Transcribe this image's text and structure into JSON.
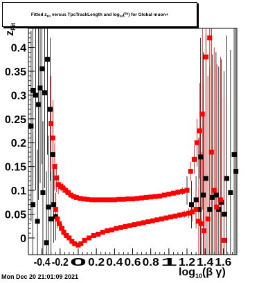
{
  "chart_data": {
    "type": "scatter",
    "title": {
      "pre": "Fitted z",
      "sub": "Fit",
      "mid": " versus TpcTrackLength and log",
      "sub2": "10",
      "post": "(",
      "sym": "βγ",
      "end": ") for Global muon+"
    },
    "ylabel": {
      "main": "z",
      "sub": "Fit"
    },
    "xlabel": {
      "main": "log",
      "sub": "10",
      "post": "(β γ)"
    },
    "xlim": [
      -0.55,
      1.75
    ],
    "ylim": [
      -0.035,
      0.44
    ],
    "x_ticks": [
      {
        "v": -0.4,
        "label": "-0.4"
      },
      {
        "v": -0.2,
        "label": "-0.2"
      },
      {
        "v": 0,
        "label": "0"
      },
      {
        "v": 0.2,
        "label": "0.2"
      },
      {
        "v": 0.4,
        "label": "0.4"
      },
      {
        "v": 0.6,
        "label": "0.6"
      },
      {
        "v": 0.8,
        "label": "0.8"
      },
      {
        "v": 1.0,
        "label": "1"
      },
      {
        "v": 1.2,
        "label": "1.2"
      },
      {
        "v": 1.4,
        "label": "1.4"
      },
      {
        "v": 1.6,
        "label": "1.6"
      }
    ],
    "y_ticks": [
      {
        "v": 0,
        "label": "0"
      },
      {
        "v": 0.05,
        "label": "0.05"
      },
      {
        "v": 0.1,
        "label": "0.1"
      },
      {
        "v": 0.15,
        "label": "0.15"
      },
      {
        "v": 0.2,
        "label": "0.2"
      },
      {
        "v": 0.25,
        "label": "0.25"
      },
      {
        "v": 0.3,
        "label": "0.3"
      },
      {
        "v": 0.35,
        "label": "0.35"
      },
      {
        "v": 0.4,
        "label": "0.4"
      }
    ],
    "series": [
      {
        "color": "#000000",
        "points": [
          {
            "x": -0.52,
            "y": 0.235,
            "e": 0.2
          },
          {
            "x": -0.5,
            "y": 0.31,
            "e": 0.2
          },
          {
            "x": -0.5,
            "y": 0.07,
            "e": 0.15
          },
          {
            "x": -0.47,
            "y": 0.3,
            "e": 0.2
          },
          {
            "x": -0.45,
            "y": 0.035,
            "e": 0.15
          },
          {
            "x": -0.44,
            "y": 0.28,
            "e": 0.2
          },
          {
            "x": -0.42,
            "y": 0.315,
            "e": 0.2
          },
          {
            "x": -0.4,
            "y": 0.355,
            "e": 0.2
          },
          {
            "x": -0.39,
            "y": 0.095,
            "e": 0.15
          },
          {
            "x": -0.37,
            "y": 0.305,
            "e": 0.2
          },
          {
            "x": -0.35,
            "y": -0.01,
            "e": 0.15
          },
          {
            "x": -0.34,
            "y": 0.375,
            "e": 0.2
          },
          {
            "x": -0.33,
            "y": 0.065,
            "e": 0.15
          },
          {
            "x": -0.31,
            "y": 0.27,
            "e": 0.15
          },
          {
            "x": -0.3,
            "y": 0.04,
            "e": 0.1
          },
          {
            "x": -0.28,
            "y": 0.175,
            "e": 0.1
          },
          {
            "x": -0.27,
            "y": 0.07,
            "e": 0.08
          },
          {
            "x": -0.25,
            "y": 0.045,
            "e": 0.05
          },
          {
            "x": 1.2,
            "y": 0.1,
            "e": 0.03
          },
          {
            "x": 1.25,
            "y": 0.07,
            "e": 0.05
          },
          {
            "x": 1.3,
            "y": 0.08,
            "e": 0.05
          },
          {
            "x": 1.33,
            "y": 0.06,
            "e": 0.15
          },
          {
            "x": 1.35,
            "y": 0.17,
            "e": 0.25
          },
          {
            "x": 1.38,
            "y": 0.09,
            "e": 0.3
          },
          {
            "x": 1.41,
            "y": 0.125,
            "e": 0.3
          },
          {
            "x": 1.45,
            "y": 0.06,
            "e": 0.3
          },
          {
            "x": 1.48,
            "y": 0.085,
            "e": 0.3
          },
          {
            "x": 1.52,
            "y": 0.09,
            "e": 0.3
          },
          {
            "x": 1.55,
            "y": 0.06,
            "e": 0.3
          },
          {
            "x": 1.58,
            "y": 0.075,
            "e": 0.3
          },
          {
            "x": 1.61,
            "y": 0.05,
            "e": 0.3
          },
          {
            "x": 1.64,
            "y": 0.125,
            "e": 0.3
          },
          {
            "x": 1.68,
            "y": 0.095,
            "e": 0.3
          },
          {
            "x": 1.72,
            "y": 0.175,
            "e": 0.3
          },
          {
            "x": 1.74,
            "y": 0.14,
            "e": 0.3
          }
        ]
      },
      {
        "color": "#ff0000",
        "points": [
          {
            "x": -0.3,
            "y": 0.24,
            "e": 0.1
          },
          {
            "x": -0.28,
            "y": 0.21,
            "e": 0.08
          },
          {
            "x": -0.26,
            "y": 0.15,
            "e": 0.05
          },
          {
            "x": -0.25,
            "y": 0.06,
            "e": 0.03
          },
          {
            "x": -0.24,
            "y": 0.126,
            "e": 0.03
          },
          {
            "x": -0.23,
            "y": 0.04,
            "e": 0.02
          },
          {
            "x": -0.22,
            "y": 0.112,
            "e": 0.02
          },
          {
            "x": -0.21,
            "y": 0.03,
            "e": 0.015
          },
          {
            "x": -0.19,
            "y": 0.108,
            "e": 0.01
          },
          {
            "x": -0.18,
            "y": 0.02,
            "e": 0.01
          },
          {
            "x": -0.17,
            "y": 0.105,
            "e": 0.01
          },
          {
            "x": -0.16,
            "y": 0.012,
            "e": 0.008
          },
          {
            "x": -0.14,
            "y": 0.1,
            "e": 0.008
          },
          {
            "x": -0.13,
            "y": 0.005,
            "e": 0.006
          },
          {
            "x": -0.11,
            "y": 0.095,
            "e": 0.006
          },
          {
            "x": -0.1,
            "y": 0.0,
            "e": 0.005
          },
          {
            "x": -0.08,
            "y": 0.09,
            "e": 0.005
          },
          {
            "x": -0.07,
            "y": -0.007,
            "e": 0.005
          },
          {
            "x": -0.05,
            "y": 0.087,
            "e": 0.004
          },
          {
            "x": -0.04,
            "y": -0.012,
            "e": 0.004
          },
          {
            "x": -0.02,
            "y": 0.085,
            "e": 0.004
          },
          {
            "x": 0.0,
            "y": -0.015,
            "e": 0.004
          },
          {
            "x": 0.02,
            "y": 0.083,
            "e": 0.003
          },
          {
            "x": 0.03,
            "y": -0.012,
            "e": 0.003
          },
          {
            "x": 0.06,
            "y": 0.082,
            "e": 0.003
          },
          {
            "x": 0.07,
            "y": -0.005,
            "e": 0.003
          },
          {
            "x": 0.1,
            "y": 0.081,
            "e": 0.003
          },
          {
            "x": 0.12,
            "y": 0.0,
            "e": 0.003
          },
          {
            "x": 0.15,
            "y": 0.08,
            "e": 0.003
          },
          {
            "x": 0.17,
            "y": 0.005,
            "e": 0.003
          },
          {
            "x": 0.2,
            "y": 0.08,
            "e": 0.003
          },
          {
            "x": 0.22,
            "y": 0.008,
            "e": 0.003
          },
          {
            "x": 0.25,
            "y": 0.08,
            "e": 0.003
          },
          {
            "x": 0.27,
            "y": 0.012,
            "e": 0.003
          },
          {
            "x": 0.3,
            "y": 0.08,
            "e": 0.003
          },
          {
            "x": 0.32,
            "y": 0.015,
            "e": 0.003
          },
          {
            "x": 0.35,
            "y": 0.08,
            "e": 0.003
          },
          {
            "x": 0.37,
            "y": 0.017,
            "e": 0.003
          },
          {
            "x": 0.4,
            "y": 0.08,
            "e": 0.003
          },
          {
            "x": 0.42,
            "y": 0.02,
            "e": 0.003
          },
          {
            "x": 0.45,
            "y": 0.081,
            "e": 0.003
          },
          {
            "x": 0.47,
            "y": 0.022,
            "e": 0.003
          },
          {
            "x": 0.5,
            "y": 0.081,
            "e": 0.003
          },
          {
            "x": 0.52,
            "y": 0.024,
            "e": 0.003
          },
          {
            "x": 0.55,
            "y": 0.082,
            "e": 0.003
          },
          {
            "x": 0.57,
            "y": 0.026,
            "e": 0.003
          },
          {
            "x": 0.6,
            "y": 0.082,
            "e": 0.003
          },
          {
            "x": 0.62,
            "y": 0.028,
            "e": 0.003
          },
          {
            "x": 0.65,
            "y": 0.083,
            "e": 0.003
          },
          {
            "x": 0.67,
            "y": 0.03,
            "e": 0.003
          },
          {
            "x": 0.7,
            "y": 0.084,
            "e": 0.003
          },
          {
            "x": 0.72,
            "y": 0.032,
            "e": 0.003
          },
          {
            "x": 0.75,
            "y": 0.085,
            "e": 0.003
          },
          {
            "x": 0.77,
            "y": 0.034,
            "e": 0.003
          },
          {
            "x": 0.8,
            "y": 0.086,
            "e": 0.003
          },
          {
            "x": 0.82,
            "y": 0.036,
            "e": 0.003
          },
          {
            "x": 0.85,
            "y": 0.087,
            "e": 0.003
          },
          {
            "x": 0.87,
            "y": 0.038,
            "e": 0.003
          },
          {
            "x": 0.9,
            "y": 0.088,
            "e": 0.003
          },
          {
            "x": 0.92,
            "y": 0.04,
            "e": 0.003
          },
          {
            "x": 0.95,
            "y": 0.09,
            "e": 0.004
          },
          {
            "x": 0.97,
            "y": 0.042,
            "e": 0.004
          },
          {
            "x": 1.0,
            "y": 0.092,
            "e": 0.004
          },
          {
            "x": 1.02,
            "y": 0.044,
            "e": 0.004
          },
          {
            "x": 1.05,
            "y": 0.094,
            "e": 0.005
          },
          {
            "x": 1.07,
            "y": 0.046,
            "e": 0.005
          },
          {
            "x": 1.1,
            "y": 0.096,
            "e": 0.006
          },
          {
            "x": 1.12,
            "y": 0.048,
            "e": 0.006
          },
          {
            "x": 1.15,
            "y": 0.098,
            "e": 0.008
          },
          {
            "x": 1.17,
            "y": 0.05,
            "e": 0.008
          },
          {
            "x": 1.2,
            "y": 0.1,
            "e": 0.01
          },
          {
            "x": 1.22,
            "y": 0.052,
            "e": 0.01
          },
          {
            "x": 1.24,
            "y": 0.14,
            "e": 0.02
          },
          {
            "x": 1.26,
            "y": 0.055,
            "e": 0.02
          },
          {
            "x": 1.28,
            "y": 0.165,
            "e": 0.03
          },
          {
            "x": 1.3,
            "y": 0.06,
            "e": 0.04
          },
          {
            "x": 1.31,
            "y": 0.2,
            "e": 0.05
          },
          {
            "x": 1.33,
            "y": 0.035,
            "e": 0.08
          },
          {
            "x": 1.34,
            "y": 0.225,
            "e": 0.1
          },
          {
            "x": 1.36,
            "y": 0.03,
            "e": 0.15
          },
          {
            "x": 1.37,
            "y": 0.26,
            "e": 0.2
          },
          {
            "x": 1.39,
            "y": 0.015,
            "e": 0.25
          },
          {
            "x": 1.41,
            "y": 0.38,
            "e": 0.35
          },
          {
            "x": 1.43,
            "y": 0.04,
            "e": 0.3
          },
          {
            "x": 1.45,
            "y": 0.42,
            "e": 0.35
          },
          {
            "x": 1.47,
            "y": 0.18,
            "e": 0.3
          },
          {
            "x": 1.5,
            "y": 0.1,
            "e": 0.3
          },
          {
            "x": 1.53,
            "y": 0.065,
            "e": 0.3
          },
          {
            "x": 1.57,
            "y": 0.08,
            "e": 0.3
          },
          {
            "x": 1.61,
            "y": -0.005,
            "e": 0.3
          }
        ]
      }
    ]
  },
  "timestamp": "Mon Dec 20 21:01:09 2021"
}
